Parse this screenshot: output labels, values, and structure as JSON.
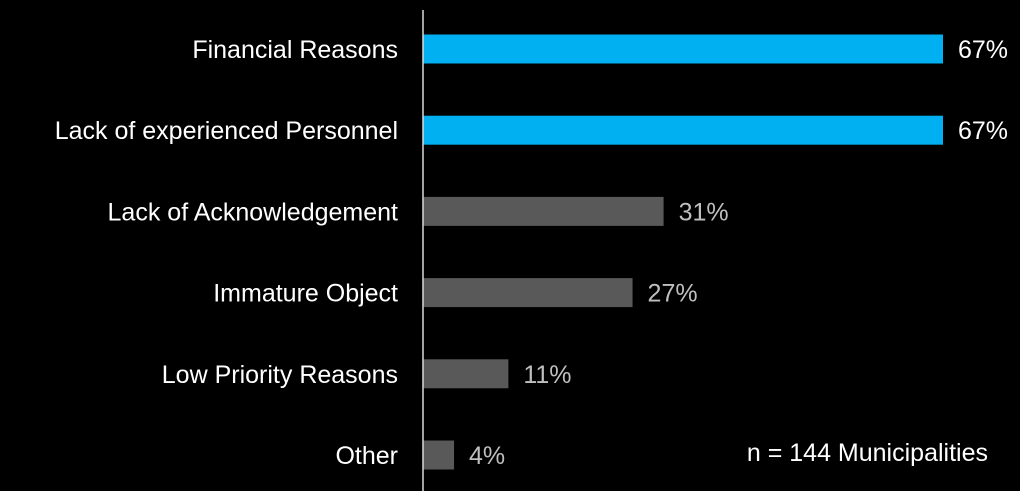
{
  "chart_data": {
    "type": "bar",
    "orientation": "horizontal",
    "categories": [
      "Financial Reasons",
      "Lack of experienced Personnel",
      "Lack of Acknowledgement",
      "Immature Object",
      "Low Priority Reasons",
      "Other"
    ],
    "values": [
      67,
      67,
      31,
      27,
      11,
      4
    ],
    "value_labels": [
      "67%",
      "67%",
      "31%",
      "27%",
      "11%",
      "4%"
    ],
    "unit": "%",
    "xlim": [
      0,
      67
    ],
    "grid": false,
    "legend": "none",
    "annotation": "n = 144 Municipalities",
    "colors": {
      "background": "#000000",
      "highlight_bar": "#00b0f0",
      "default_bar": "#595959",
      "highlight_label": "#ffffff",
      "default_label": "#bfbfbf",
      "category_text": "#ffffff",
      "axis": "#d9d9d9"
    },
    "highlighted": [
      true,
      true,
      false,
      false,
      false,
      false
    ]
  }
}
